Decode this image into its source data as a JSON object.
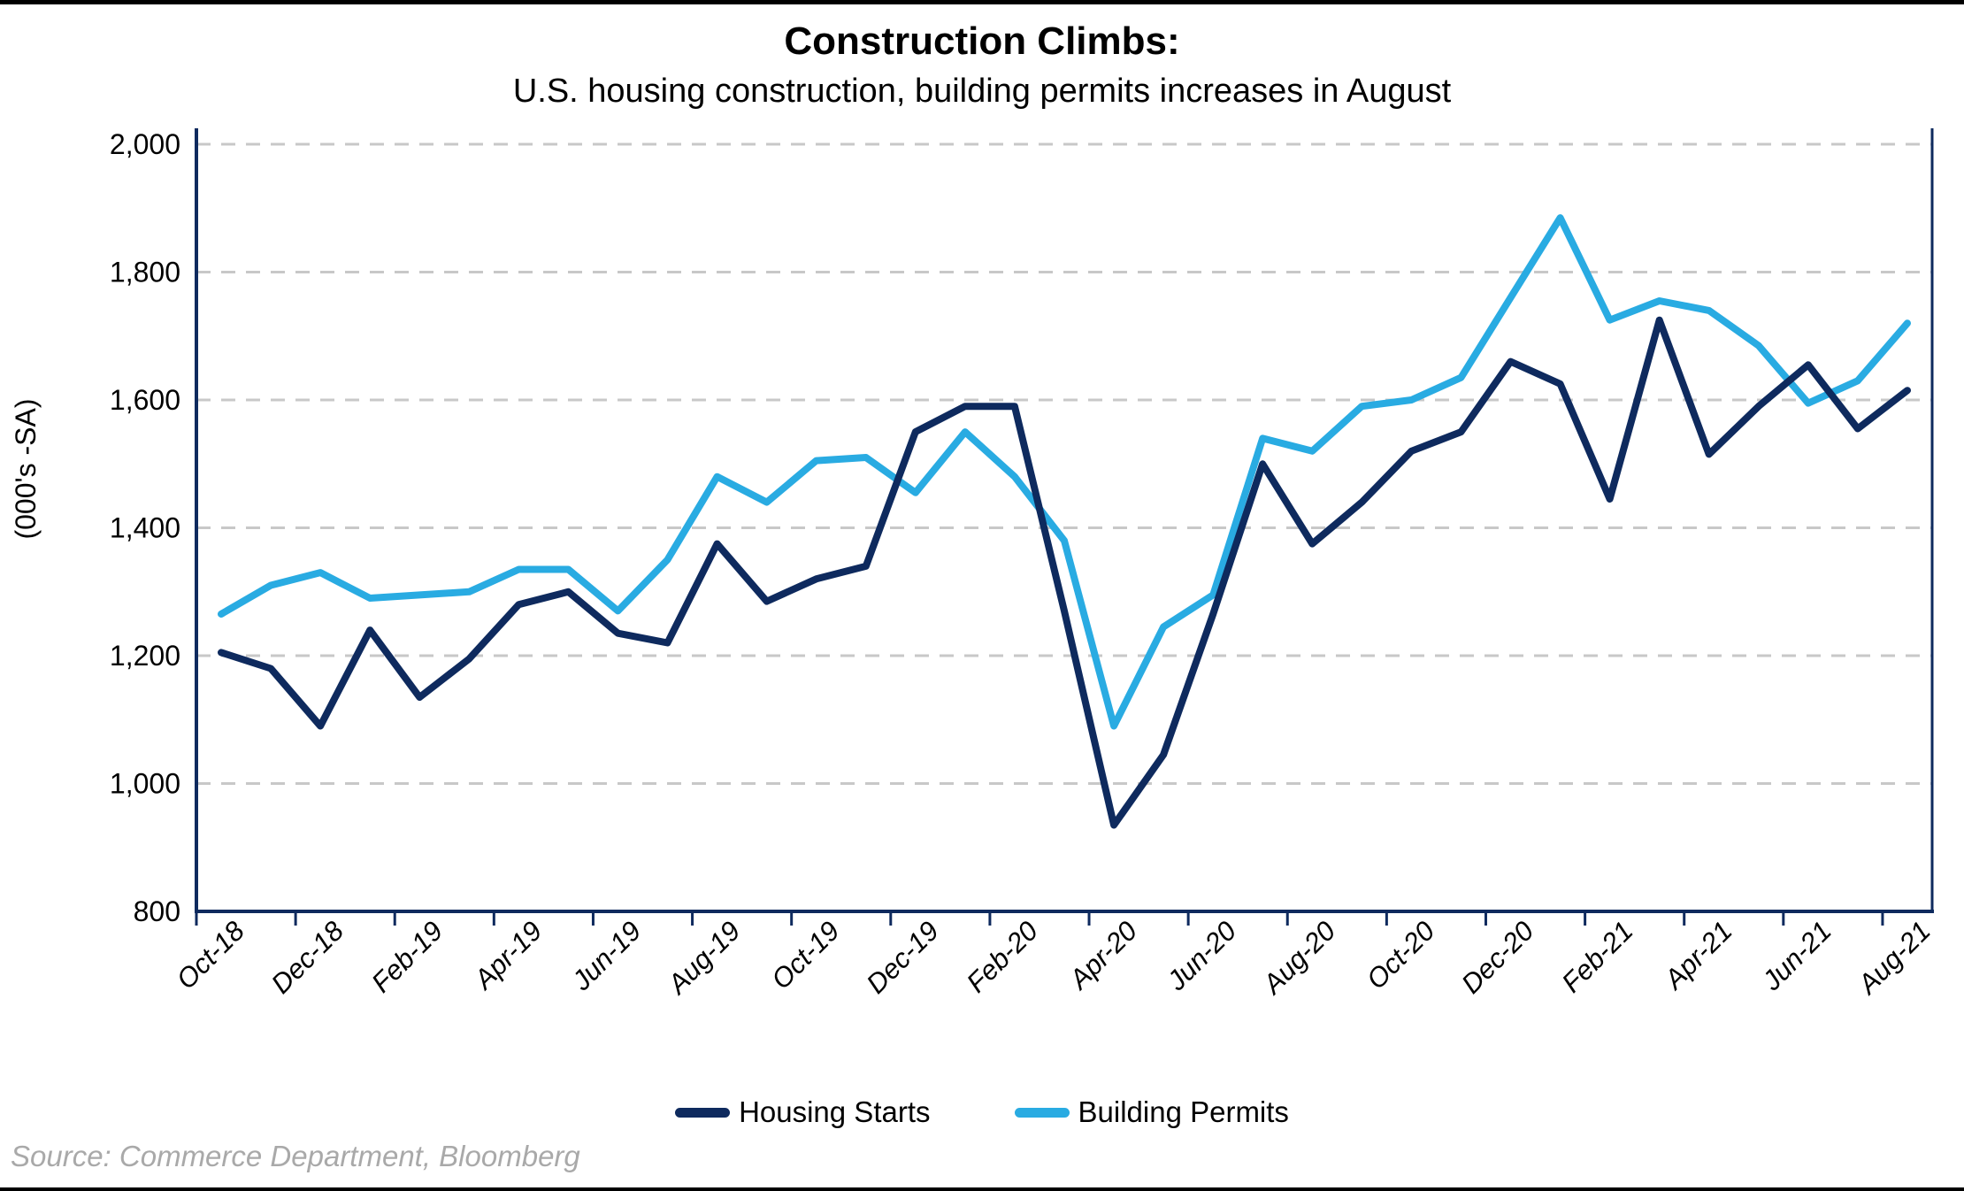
{
  "title": "Construction Climbs:",
  "subtitle": "U.S. housing construction, building permits increases in August",
  "source": "Source: Commerce Department, Bloomberg",
  "y_axis": {
    "title": "(000's -SA)",
    "min": 800,
    "max": 2000,
    "step": 200,
    "tick_labels": [
      "800",
      "1,000",
      "1,200",
      "1,400",
      "1,600",
      "1,800",
      "2,000"
    ]
  },
  "x_axis": {
    "tick_labels": [
      "Oct-18",
      "Dec-18",
      "Feb-19",
      "Apr-19",
      "Jun-19",
      "Aug-19",
      "Oct-19",
      "Dec-19",
      "Feb-20",
      "Apr-20",
      "Jun-20",
      "Aug-20",
      "Oct-20",
      "Dec-20",
      "Feb-21",
      "Apr-21",
      "Jun-21",
      "Aug-21"
    ]
  },
  "colors": {
    "housing_starts": "#0E2A5E",
    "building_permits": "#29ABE2",
    "axis": "#0E2A5E",
    "gridline": "#C8C8C8"
  },
  "chart_data": {
    "type": "line",
    "title": "Construction Climbs:",
    "subtitle": "U.S. housing construction, building permits increases in August",
    "ylabel": "(000's -SA)",
    "xlabel": "",
    "ylim": [
      800,
      2000
    ],
    "grid": "horizontal-dashed",
    "legend_position": "bottom",
    "x": [
      "Oct-18",
      "Nov-18",
      "Dec-18",
      "Jan-19",
      "Feb-19",
      "Mar-19",
      "Apr-19",
      "May-19",
      "Jun-19",
      "Jul-19",
      "Aug-19",
      "Sep-19",
      "Oct-19",
      "Nov-19",
      "Dec-19",
      "Jan-20",
      "Feb-20",
      "Mar-20",
      "Apr-20",
      "May-20",
      "Jun-20",
      "Jul-20",
      "Aug-20",
      "Sep-20",
      "Oct-20",
      "Nov-20",
      "Dec-20",
      "Jan-21",
      "Feb-21",
      "Mar-21",
      "Apr-21",
      "May-21",
      "Jun-21",
      "Jul-21",
      "Aug-21"
    ],
    "series": [
      {
        "name": "Housing Starts",
        "color": "#0E2A5E",
        "values": [
          1205,
          1180,
          1090,
          1240,
          1135,
          1195,
          1280,
          1300,
          1235,
          1220,
          1375,
          1285,
          1320,
          1340,
          1550,
          1590,
          1590,
          1270,
          935,
          1045,
          1265,
          1500,
          1375,
          1440,
          1520,
          1550,
          1660,
          1625,
          1445,
          1725,
          1515,
          1590,
          1655,
          1555,
          1615
        ]
      },
      {
        "name": "Building Permits",
        "color": "#29ABE2",
        "values": [
          1265,
          1310,
          1330,
          1290,
          1295,
          1300,
          1335,
          1335,
          1270,
          1350,
          1480,
          1440,
          1505,
          1510,
          1455,
          1550,
          1480,
          1380,
          1090,
          1245,
          1295,
          1540,
          1520,
          1590,
          1600,
          1635,
          1760,
          1885,
          1725,
          1755,
          1740,
          1685,
          1595,
          1630,
          1720
        ]
      }
    ]
  }
}
